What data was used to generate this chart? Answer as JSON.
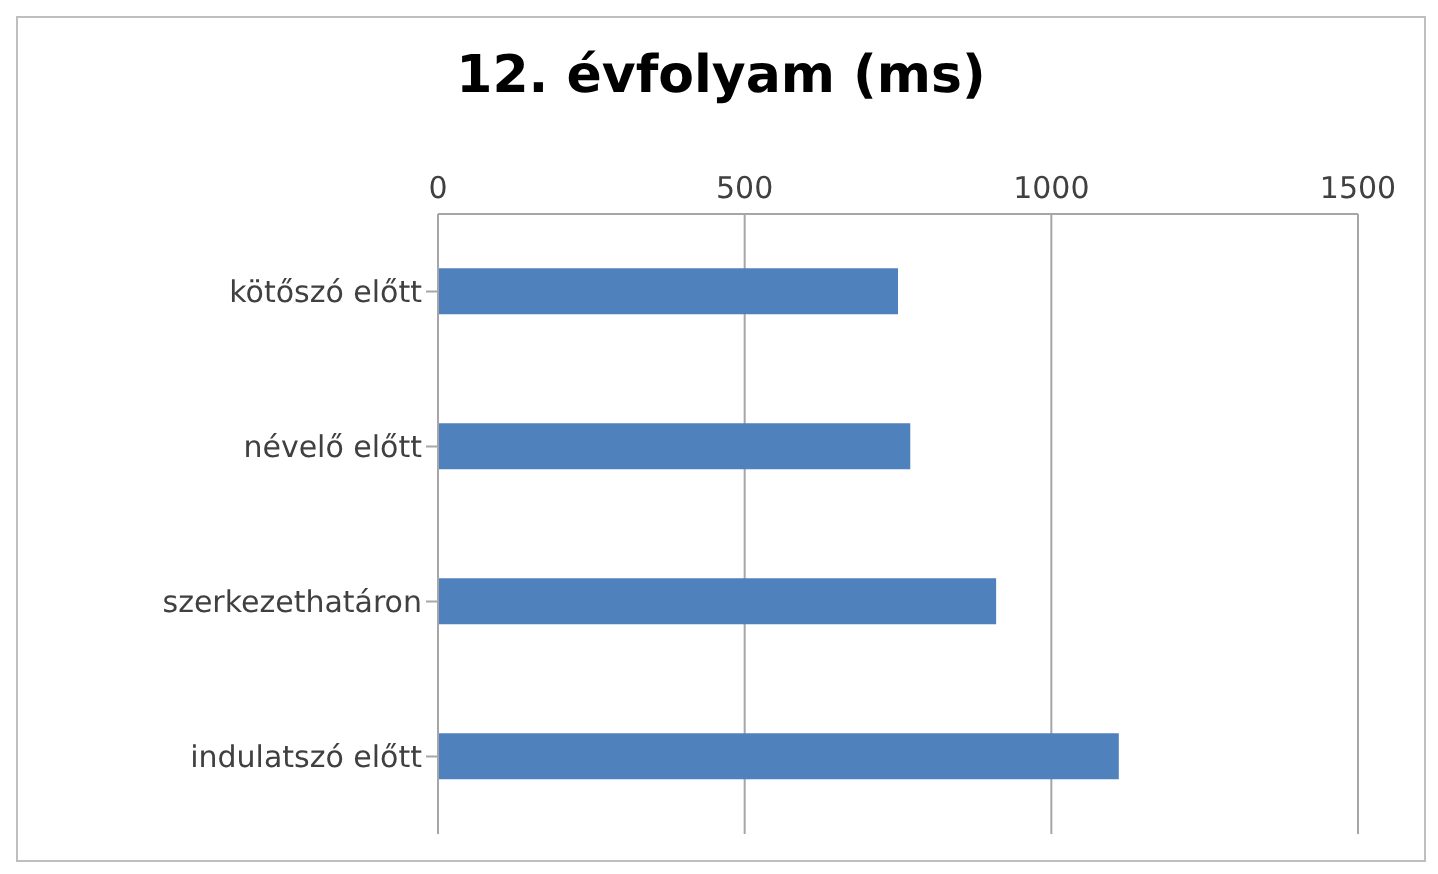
{
  "chart_data": {
    "type": "bar",
    "orientation": "horizontal",
    "title": "12. évfolyam (ms)",
    "categories": [
      "kötőszó előtt",
      "névelő előtt",
      "szerkezethatáron",
      "indulatszó előtt"
    ],
    "values": [
      750,
      770,
      910,
      1110
    ],
    "color": "#4f81bd",
    "xlim": [
      0,
      1500
    ],
    "xticks": [
      0,
      500,
      1000,
      1500
    ],
    "grid": "x"
  }
}
